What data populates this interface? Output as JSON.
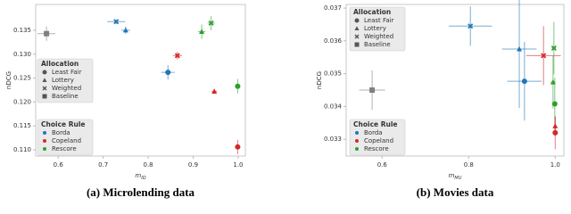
{
  "chart_data": [
    {
      "type": "scatter",
      "caption": "(a) Microlending data",
      "x_label": "m",
      "x_label_sub": "ID",
      "y_label": "nDCG",
      "xlim": [
        0.55,
        1.016
      ],
      "ylim": [
        0.1087,
        0.1404
      ],
      "xticks": [
        0.6,
        0.7,
        0.8,
        0.9,
        {
          "value": 1.0,
          "label": "1.0"
        }
      ],
      "yticks": [
        {
          "value": 0.11,
          "label": "0.110"
        },
        0.115,
        {
          "value": 0.12,
          "label": "0.120"
        },
        0.125,
        {
          "value": 0.13,
          "label": "0.130"
        },
        0.135
      ],
      "legends": [
        {
          "title": "Allocation",
          "entries": [
            {
              "label": "Least Fair",
              "marker": "circle"
            },
            {
              "label": "Lottery",
              "marker": "triangle"
            },
            {
              "label": "Weighted",
              "marker": "x"
            },
            {
              "label": "Baseline",
              "marker": "square"
            }
          ]
        },
        {
          "title": "Choice Rule",
          "entries": [
            {
              "label": "Borda",
              "color": "#1f77b4"
            },
            {
              "label": "Copeland",
              "color": "#d62728"
            },
            {
              "label": "Rescore",
              "color": "#2ca02c"
            }
          ]
        }
      ],
      "points": [
        {
          "marker": "square",
          "color": "#7f7f7f",
          "x": 0.574,
          "y": 0.1343,
          "xerr": 0.02,
          "yerr": 0.0015
        },
        {
          "marker": "x",
          "color": "#1f77b4",
          "x": 0.729,
          "y": 0.1368,
          "xerr": 0.02,
          "yerr": 0.0005
        },
        {
          "marker": "triangle",
          "color": "#1f77b4",
          "x": 0.75,
          "y": 0.135,
          "xerr": 0.01,
          "yerr": 0.0008
        },
        {
          "marker": "circle",
          "color": "#1f77b4",
          "x": 0.844,
          "y": 0.1262,
          "xerr": 0.015,
          "yerr": 0.0015
        },
        {
          "marker": "x",
          "color": "#d62728",
          "x": 0.865,
          "y": 0.1297,
          "xerr": 0.01,
          "yerr": 0.0008
        },
        {
          "marker": "triangle",
          "color": "#2ca02c",
          "x": 0.919,
          "y": 0.1347,
          "xerr": 0.008,
          "yerr": 0.0015
        },
        {
          "marker": "x",
          "color": "#2ca02c",
          "x": 0.94,
          "y": 0.1365,
          "xerr": 0.008,
          "yerr": 0.0015
        },
        {
          "marker": "triangle",
          "color": "#d62728",
          "x": 0.947,
          "y": 0.1222,
          "xerr": 0.006,
          "yerr": 0.0005
        },
        {
          "marker": "circle",
          "color": "#2ca02c",
          "x": 0.999,
          "y": 0.1233,
          "xerr": 0.002,
          "yerr": 0.0015
        },
        {
          "marker": "circle",
          "color": "#d62728",
          "x": 0.999,
          "y": 0.1106,
          "xerr": 0.002,
          "yerr": 0.0015
        }
      ]
    },
    {
      "type": "scatter",
      "caption": "(b) Movies data",
      "x_label": "m",
      "x_label_sub": "MU",
      "y_label": "nDCG",
      "xlim": [
        0.517,
        1.02
      ],
      "ylim": [
        0.03249,
        0.03711
      ],
      "xticks": [
        0.6,
        0.8,
        {
          "value": 1.0,
          "label": "1.0"
        }
      ],
      "yticks": [
        0.033,
        0.034,
        0.035,
        0.036,
        0.037
      ],
      "legends": [
        {
          "title": "Allocation",
          "entries": [
            {
              "label": "Least Fair",
              "marker": "circle"
            },
            {
              "label": "Lottery",
              "marker": "triangle"
            },
            {
              "label": "Weighted",
              "marker": "x"
            },
            {
              "label": "Baseline",
              "marker": "square"
            }
          ]
        },
        {
          "title": "Choice Rule",
          "entries": [
            {
              "label": "Borda",
              "color": "#1f77b4"
            },
            {
              "label": "Copeland",
              "color": "#d62728"
            },
            {
              "label": "Rescore",
              "color": "#2ca02c"
            }
          ]
        }
      ],
      "points": [
        {
          "marker": "square",
          "color": "#7f7f7f",
          "x": 0.577,
          "y": 0.0345,
          "xerr": 0.03,
          "yerr": 0.0006
        },
        {
          "marker": "x",
          "color": "#1f77b4",
          "x": 0.804,
          "y": 0.03645,
          "xerr": 0.05,
          "yerr": 0.0006
        },
        {
          "marker": "triangle",
          "color": "#1f77b4",
          "x": 0.917,
          "y": 0.03575,
          "xerr": 0.04,
          "yerr": 0.0018
        },
        {
          "marker": "circle",
          "color": "#1f77b4",
          "x": 0.929,
          "y": 0.03477,
          "xerr": 0.04,
          "yerr": 0.0012
        },
        {
          "marker": "x",
          "color": "#d62728",
          "x": 0.973,
          "y": 0.03555,
          "xerr": 0.04,
          "yerr": 0.0009
        },
        {
          "marker": "x",
          "color": "#2ca02c",
          "x": 0.997,
          "y": 0.03578,
          "xerr": 0.005,
          "yerr": 0.0008
        },
        {
          "marker": "triangle",
          "color": "#2ca02c",
          "x": 0.995,
          "y": 0.03474,
          "xerr": 0.005,
          "yerr": 0.0008
        },
        {
          "marker": "circle",
          "color": "#2ca02c",
          "x": 0.999,
          "y": 0.03408,
          "xerr": 0.005,
          "yerr": 0.0008
        },
        {
          "marker": "triangle",
          "color": "#d62728",
          "x": 1.0,
          "y": 0.0334,
          "xerr": 0.003,
          "yerr": 0.0003
        },
        {
          "marker": "circle",
          "color": "#d62728",
          "x": 1.0,
          "y": 0.0332,
          "xerr": 0.003,
          "yerr": 0.0005
        }
      ]
    }
  ]
}
